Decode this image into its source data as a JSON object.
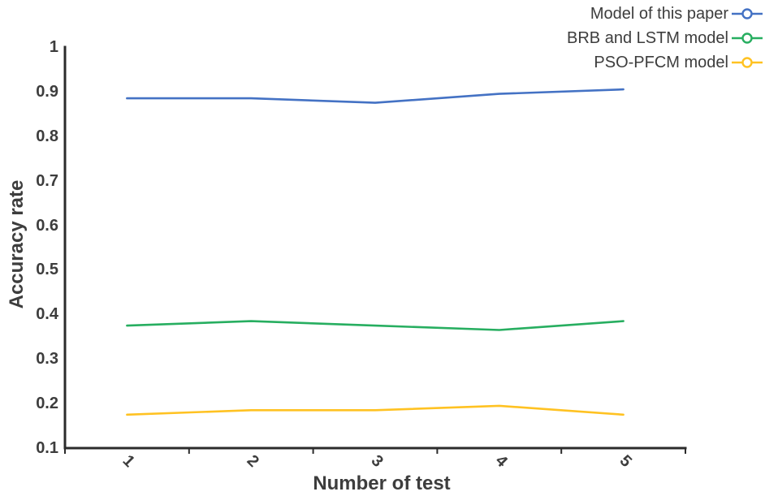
{
  "chart_data": {
    "type": "line",
    "title": "",
    "xlabel": "Number of test",
    "ylabel": "Accuracy rate",
    "categories": [
      "1",
      "2",
      "3",
      "4",
      "5"
    ],
    "y_ticks": [
      1,
      0.9,
      0.8,
      0.7,
      0.6,
      0.5,
      0.4,
      0.3,
      0.2,
      0.1
    ],
    "y_tick_labels": [
      "1",
      "0.9",
      "0.8",
      "0.7",
      "0.6",
      "0.5",
      "0.4",
      "0.3",
      "0.2",
      "0.1"
    ],
    "ylim": [
      0.1,
      1.0
    ],
    "grid": false,
    "legend_position": "top-right",
    "x_tick_rotation_deg": 45,
    "axis_color": "#2b2b2b",
    "text_color": "#3d3d3d",
    "background_color": "#ffffff",
    "series": [
      {
        "name": "Model of this paper",
        "color": "#4472c4",
        "values": [
          0.885,
          0.885,
          0.875,
          0.895,
          0.905
        ]
      },
      {
        "name": "BRB and LSTM model",
        "color": "#27ae60",
        "values": [
          0.375,
          0.385,
          0.375,
          0.365,
          0.385
        ]
      },
      {
        "name": "PSO-PFCM model",
        "color": "#ffc222",
        "values": [
          0.175,
          0.185,
          0.185,
          0.195,
          0.175
        ]
      }
    ]
  }
}
